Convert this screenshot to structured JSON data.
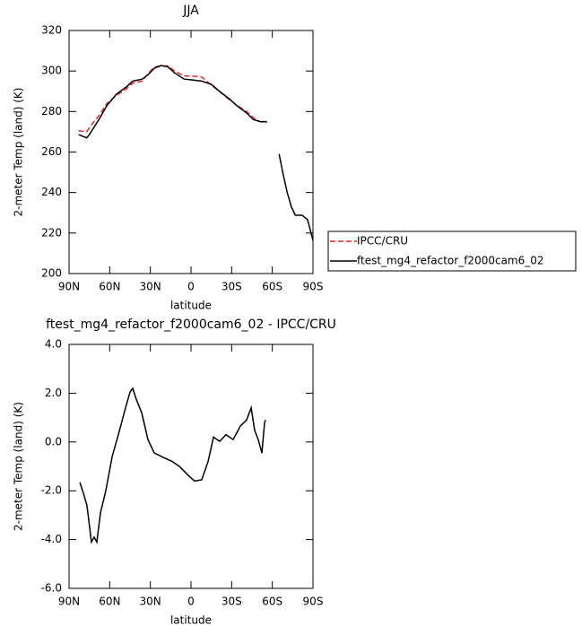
{
  "chart_data": [
    {
      "type": "line",
      "title": "JJA",
      "y_label": "2-meter Temp (land) (K)",
      "x_label": "latitude",
      "x": [
        83,
        77,
        75,
        68,
        62,
        55,
        48,
        43,
        36,
        32,
        27,
        22,
        17,
        12,
        5,
        -1,
        -8,
        -15,
        -21,
        -28,
        -34,
        -41,
        -46,
        -51,
        -56,
        -60,
        -65,
        -68,
        -71,
        -74,
        -77,
        -82,
        -86,
        -90
      ],
      "series": [
        {
          "name": "IPCC/CRU",
          "color": "#e8262a",
          "dash": true,
          "values": [
            270.5,
            270,
            272,
            278,
            284,
            288,
            291,
            294,
            295,
            298.5,
            302,
            302.5,
            302.5,
            300,
            297.5,
            297.5,
            297,
            293,
            290,
            286,
            283,
            280,
            277,
            275,
            274.5,
            null,
            null,
            null,
            null,
            null,
            null,
            null,
            null,
            null
          ]
        },
        {
          "name": "ftest_mg4_refactor_f2000cam6_02",
          "color": "#000000",
          "dash": false,
          "values": [
            268.6,
            267,
            268.6,
            276,
            283,
            288.6,
            292,
            295,
            296,
            298,
            301.4,
            302.7,
            302,
            299,
            296,
            295.6,
            295,
            293.4,
            290,
            286.4,
            282.8,
            279.3,
            276,
            275,
            275,
            null,
            259,
            249,
            240,
            233,
            228.8,
            228.8,
            226.6,
            216.4
          ]
        }
      ],
      "xlim": [
        90,
        -90
      ],
      "xticks": [
        {
          "value": 90,
          "label": "90N"
        },
        {
          "value": 60,
          "label": "60N"
        },
        {
          "value": 30,
          "label": "30N"
        },
        0,
        {
          "value": -30,
          "label": "30S"
        },
        {
          "value": -60,
          "label": "60S"
        },
        {
          "value": -90,
          "label": "90S"
        }
      ],
      "ylim": [
        200,
        320
      ],
      "yticks": [
        200,
        220,
        240,
        260,
        280,
        300,
        320
      ],
      "legend": "right"
    },
    {
      "type": "line",
      "title": "ftest_mg4_refactor_f2000cam6_02 - IPCC/CRU",
      "y_label": "2-meter Temp (land) (K)",
      "x_label": "latitude",
      "x": [
        82,
        79.4,
        76.8,
        74.8,
        73.5,
        71.5,
        69.5,
        66.8,
        62.9,
        58.2,
        53.6,
        48.3,
        45,
        43,
        40.4,
        36.4,
        31.8,
        27.1,
        20.5,
        13.9,
        8.6,
        2,
        -2.6,
        -7.9,
        -12.6,
        -16.6,
        -21.2,
        -25.8,
        -31.1,
        -36.4,
        -41,
        -44.4,
        -47,
        -49.6,
        -52.3,
        -54.3,
        -55
      ],
      "series": [
        {
          "color": "#000000",
          "dash": false,
          "values": [
            -1.66,
            -2.1,
            -2.6,
            -3.5,
            -4.1,
            -3.9,
            -4.1,
            -2.9,
            -2.0,
            -0.6,
            0.3,
            1.4,
            2.05,
            2.2,
            1.75,
            1.2,
            0.1,
            -0.45,
            -0.63,
            -0.8,
            -1,
            -1.37,
            -1.6,
            -1.55,
            -0.8,
            0.2,
            0.03,
            0.3,
            0.1,
            0.65,
            0.9,
            1.4,
            0.47,
            0.1,
            -0.45,
            0.8,
            0.9
          ]
        }
      ],
      "xlim": [
        90,
        -90
      ],
      "xticks": [
        {
          "value": 90,
          "label": "90N"
        },
        {
          "value": 60,
          "label": "60N"
        },
        {
          "value": 30,
          "label": "30N"
        },
        0,
        {
          "value": -30,
          "label": "30S"
        },
        {
          "value": -60,
          "label": "60S"
        },
        {
          "value": -90,
          "label": "90S"
        }
      ],
      "ylim": [
        -6,
        4
      ],
      "yticks": [
        {
          "value": -6,
          "label": "-6.0"
        },
        {
          "value": -4,
          "label": "-4.0"
        },
        {
          "value": -2,
          "label": "-2.0"
        },
        {
          "value": 0,
          "label": "0.0"
        },
        {
          "value": 2,
          "label": "2.0"
        },
        {
          "value": 4,
          "label": "4.0"
        }
      ]
    }
  ]
}
